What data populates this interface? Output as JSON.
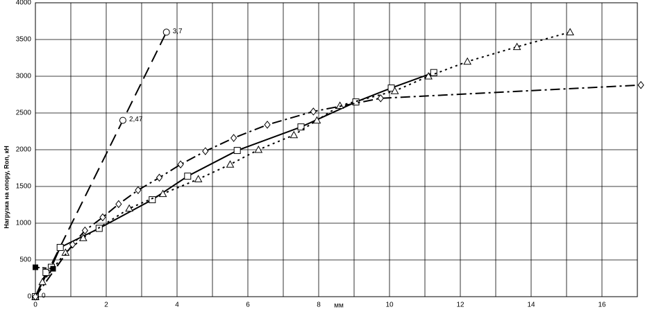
{
  "chart_data": {
    "type": "line",
    "y_label": "Нагрузка на опору, Rоп, кН",
    "x_label": "мм",
    "xlim": [
      0,
      17
    ],
    "ylim": [
      0,
      4000
    ],
    "xticks": [
      0,
      2,
      4,
      6,
      8,
      10,
      12,
      14,
      16
    ],
    "xminor": [
      1,
      3,
      5,
      7,
      9,
      11,
      13,
      15,
      17
    ],
    "yticks": [
      0,
      500,
      1000,
      1500,
      2000,
      2500,
      3000,
      3500,
      4000
    ],
    "grid": true,
    "series": [
      {
        "color": "#000000",
        "marker": "circle",
        "dash": "18,9",
        "x": [
          0,
          2.47,
          3.7
        ],
        "values": [
          0,
          2400,
          3600
        ]
      },
      {
        "color": "#000000",
        "marker": "square",
        "dash": "none",
        "x": [
          0,
          0.3,
          0.45,
          0.7,
          1.8,
          3.3,
          4.3,
          5.7,
          7.5,
          9.05,
          10.05,
          11.25
        ],
        "values": [
          0,
          330,
          400,
          670,
          930,
          1320,
          1640,
          1990,
          2310,
          2650,
          2840,
          3050
        ]
      },
      {
        "color": "#000000",
        "marker": "triangle",
        "dash": "3,5",
        "x": [
          0,
          0.2,
          0.85,
          1.35,
          2.65,
          3.6,
          4.6,
          5.5,
          6.3,
          7.3,
          7.95,
          8.6,
          10.15,
          11.1,
          12.2,
          13.6,
          15.1
        ],
        "values": [
          0,
          200,
          600,
          800,
          1200,
          1400,
          1600,
          1800,
          2000,
          2200,
          2400,
          2600,
          2800,
          3000,
          3200,
          3400,
          3600
        ]
      },
      {
        "color": "#000000",
        "marker": "diamond",
        "dash": "14,5,3,5",
        "x": [
          0,
          1.05,
          1.4,
          1.9,
          2.35,
          2.9,
          3.5,
          4.1,
          4.8,
          5.6,
          6.55,
          7.85,
          9.75,
          17.1
        ],
        "values": [
          0,
          710,
          900,
          1080,
          1260,
          1450,
          1620,
          1800,
          1980,
          2160,
          2340,
          2520,
          2700,
          2880
        ]
      },
      {
        "color": "#000000",
        "marker": "filled-square",
        "dash": "6,4",
        "x": [
          0,
          0.5
        ],
        "values": [
          400,
          380
        ]
      }
    ],
    "annotations": [
      {
        "text": "3,7",
        "x": 3.7,
        "y": 3600
      },
      {
        "text": "2,47",
        "x": 2.47,
        "y": 2400
      },
      {
        "text": "0",
        "x": 0,
        "y": 0
      }
    ]
  }
}
